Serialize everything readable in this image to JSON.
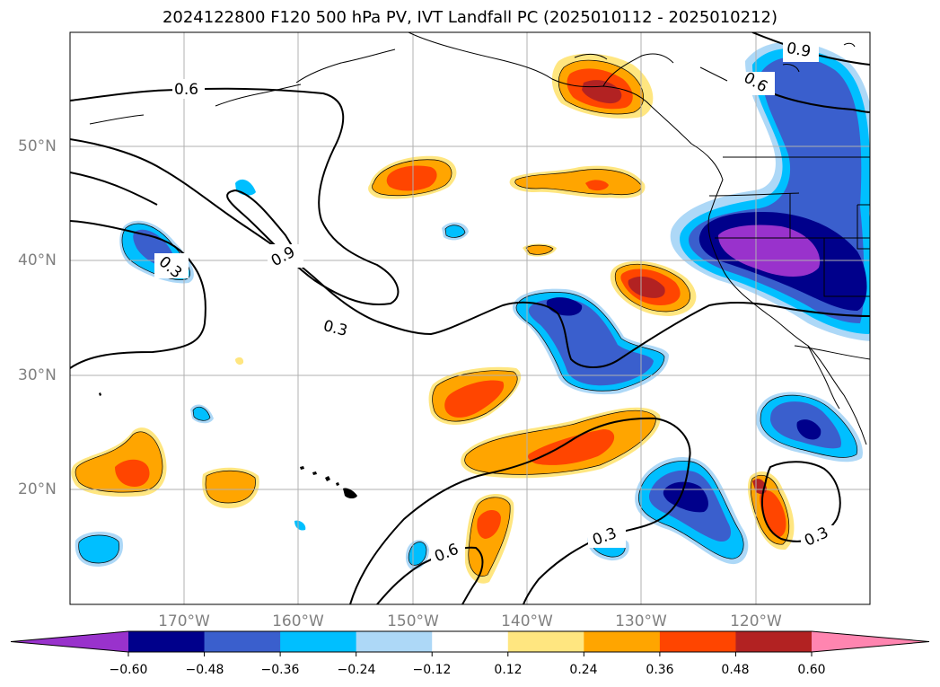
{
  "title": "2024122800 F120 500 hPa PV, IVT Landfall PC (2025010112 - 2025010212)",
  "map": {
    "projection": "PlateCarree",
    "lon_range": [
      -180,
      -110
    ],
    "lat_range": [
      10,
      60
    ],
    "gridlines": true,
    "lat_labels": [
      "50°N",
      "40°N",
      "30°N",
      "20°N"
    ],
    "lon_labels": [
      "170°W",
      "160°W",
      "150°W",
      "140°W",
      "130°W",
      "120°W"
    ],
    "contour_labels": [
      "0.6",
      "0.9",
      "0.3",
      "0.3",
      "0.6",
      "0.3",
      "0.3",
      "0.9",
      "0.6"
    ]
  },
  "colorbar": {
    "levels": [
      -0.72,
      -0.6,
      -0.48,
      -0.36,
      -0.24,
      -0.12,
      0.12,
      0.24,
      0.36,
      0.48,
      0.6,
      0.72
    ],
    "tick_labels": [
      "−0.60",
      "−0.48",
      "−0.36",
      "−0.24",
      "−0.12",
      "0.12",
      "0.24",
      "0.36",
      "0.48",
      "0.60"
    ],
    "colors": [
      "#9932cc",
      "#00008b",
      "#3a5fcd",
      "#00bfff",
      "#add8f7",
      "#ffffff",
      "#ffe680",
      "#ffa500",
      "#ff4500",
      "#b22222",
      "#ff85b0"
    ],
    "extend": "both"
  }
}
